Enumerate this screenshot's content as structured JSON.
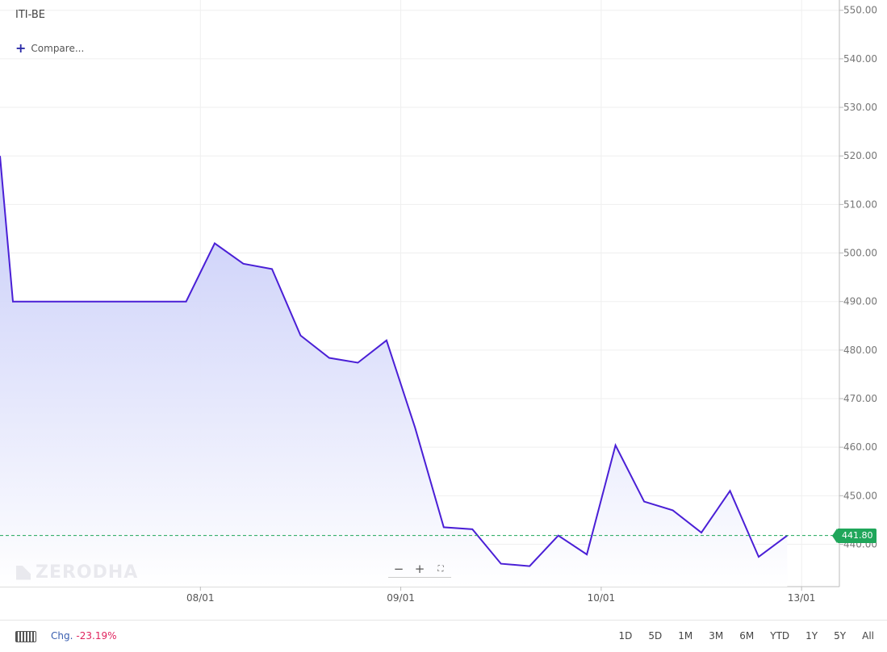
{
  "header": {
    "symbol": "ITI-BE",
    "compare_label": "Compare..."
  },
  "watermark": "ZERODHA",
  "zoom_controls": {
    "zoom_out": "−",
    "zoom_in": "+",
    "fullscreen": "⛶"
  },
  "last_price_label": "441.80",
  "footer": {
    "change_label": "Chg.",
    "change_value": "-23.19%",
    "ranges": [
      "1D",
      "5D",
      "1M",
      "3M",
      "6M",
      "YTD",
      "1Y",
      "5Y",
      "All"
    ]
  },
  "colors": {
    "line": "#4a1fd6",
    "fill_top": "#c3c8f8",
    "fill_bottom": "#ffffff",
    "last_price": "#1fa65a",
    "change_negative": "#e0245e"
  },
  "chart_data": {
    "type": "area",
    "title": "ITI-BE",
    "ylim": [
      430,
      552
    ],
    "y_ticks": [
      440,
      450,
      460,
      470,
      480,
      490,
      500,
      510,
      520,
      530,
      540,
      550
    ],
    "y_tick_labels": [
      "440.00",
      "450.00",
      "460.00",
      "470.00",
      "480.00",
      "490.00",
      "500.00",
      "510.00",
      "520.00",
      "530.00",
      "540.00",
      "550.00"
    ],
    "x_ticks": [
      "08/01",
      "09/01",
      "10/01",
      "13/01"
    ],
    "x_tick_positions": [
      7,
      14,
      21,
      28
    ],
    "xlim": [
      0,
      28.7
    ],
    "last_price": 441.8,
    "series": [
      {
        "x": [
          0,
          0.45,
          6.5,
          7.5,
          8.5,
          9.5,
          10.5,
          11.5,
          12.5,
          13.5,
          14.5,
          15.5,
          16.5,
          17.5,
          18.5,
          19.5,
          20.5,
          21.5,
          22.5,
          23.5,
          24.5,
          25.5,
          26.5,
          27.5
        ],
        "values": [
          520,
          490,
          490,
          502,
          497.8,
          496.7,
          483,
          478.4,
          477.4,
          482,
          464,
          443.5,
          443.1,
          436,
          435.5,
          441.8,
          437.9,
          460.4,
          448.8,
          447,
          442.4,
          451,
          437.4,
          441.8
        ]
      }
    ]
  }
}
